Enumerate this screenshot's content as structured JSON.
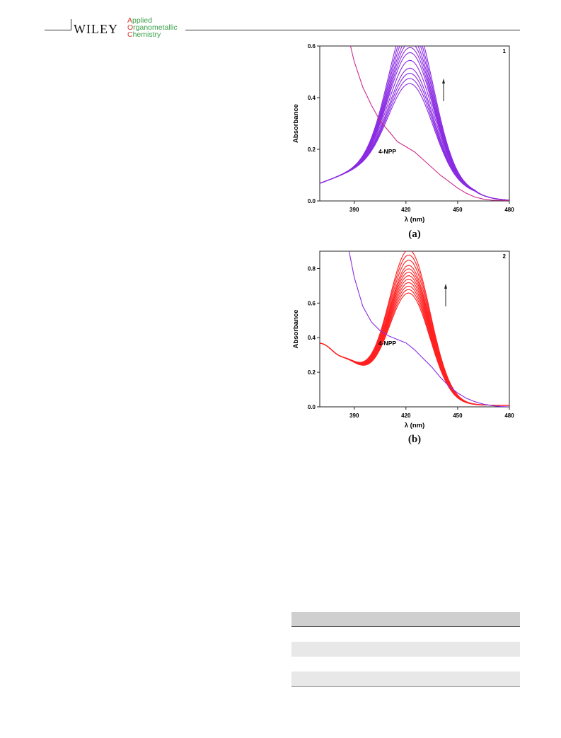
{
  "header": {
    "publisher": "WILEY",
    "journal_initials": [
      "A",
      "O",
      "C"
    ],
    "journal_rest": [
      "pplied",
      "rganometallic",
      "hemistry"
    ]
  },
  "colors": {
    "panel_a_series": "#8a2be2",
    "panel_a_reference": "#cc2a8a",
    "panel_b_series": "#ff2020",
    "panel_b_reference": "#8a2be2",
    "header_green": "#3aa04a",
    "header_red": "#d23b2a"
  },
  "figure": {
    "captions": [
      "(a)",
      "(b)"
    ]
  },
  "chart_data": [
    {
      "type": "line",
      "panel_number": "1",
      "xlabel": "λ (nm)",
      "ylabel": "Absorbance",
      "xlim": [
        370,
        480
      ],
      "ylim": [
        0,
        0.6
      ],
      "xticks": [
        390,
        420,
        450,
        480
      ],
      "yticks": [
        0.0,
        0.2,
        0.4,
        0.6
      ],
      "yticks_labels": [
        "0.0",
        "0.2",
        "0.4",
        "0.6"
      ],
      "annotation": "4-NPP",
      "arrow": "up",
      "reference_series": {
        "name": "4-NPP",
        "points": [
          [
            386,
            0.65
          ],
          [
            390,
            0.54
          ],
          [
            395,
            0.44
          ],
          [
            400,
            0.37
          ],
          [
            405,
            0.31
          ],
          [
            410,
            0.27
          ],
          [
            415,
            0.23
          ],
          [
            420,
            0.21
          ],
          [
            425,
            0.19
          ],
          [
            430,
            0.16
          ],
          [
            435,
            0.13
          ],
          [
            440,
            0.1
          ],
          [
            445,
            0.075
          ],
          [
            450,
            0.05
          ],
          [
            455,
            0.03
          ],
          [
            460,
            0.015
          ],
          [
            465,
            0.007
          ],
          [
            470,
            0.003
          ],
          [
            480,
            0.002
          ]
        ]
      },
      "series_peaks": [
        0.34,
        0.36,
        0.38,
        0.4,
        0.43,
        0.46,
        0.48,
        0.5,
        0.52,
        0.545,
        0.57,
        0.6
      ]
    },
    {
      "type": "line",
      "panel_number": "2",
      "xlabel": "λ (nm)",
      "ylabel": "Absorbance",
      "xlim": [
        370,
        480
      ],
      "ylim": [
        0,
        0.9
      ],
      "xticks": [
        390,
        420,
        450,
        480
      ],
      "yticks": [
        0.0,
        0.2,
        0.4,
        0.6,
        0.8
      ],
      "yticks_labels": [
        "0.0",
        "0.2",
        "0.4",
        "0.6",
        "0.8"
      ],
      "annotation": "4-NPP",
      "arrow": "up",
      "reference_series": {
        "name": "4-NPP",
        "points": [
          [
            387,
            0.9
          ],
          [
            390,
            0.75
          ],
          [
            395,
            0.58
          ],
          [
            400,
            0.49
          ],
          [
            405,
            0.44
          ],
          [
            410,
            0.41
          ],
          [
            415,
            0.39
          ],
          [
            420,
            0.37
          ],
          [
            425,
            0.33
          ],
          [
            430,
            0.28
          ],
          [
            435,
            0.23
          ],
          [
            440,
            0.17
          ],
          [
            445,
            0.12
          ],
          [
            450,
            0.08
          ],
          [
            455,
            0.05
          ],
          [
            460,
            0.03
          ],
          [
            465,
            0.015
          ],
          [
            470,
            0.007
          ],
          [
            475,
            0.002
          ],
          [
            480,
            0.0
          ]
        ]
      },
      "series_peaks": [
        0.63,
        0.65,
        0.67,
        0.69,
        0.71,
        0.73,
        0.75,
        0.77,
        0.79,
        0.82,
        0.85,
        0.88
      ]
    }
  ]
}
